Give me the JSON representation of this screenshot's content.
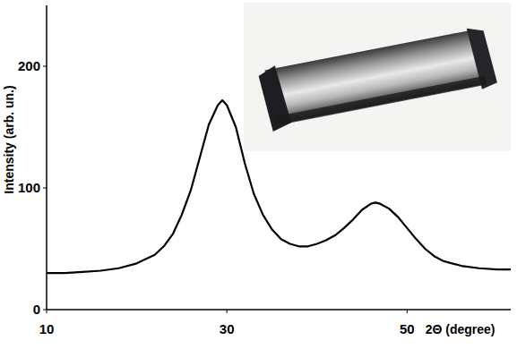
{
  "chart_data": {
    "type": "line",
    "x_label": "2Θ (degree)",
    "y_label": "Intensity (arb. un.)",
    "x": [
      10,
      12,
      14,
      16,
      18,
      20,
      22,
      23,
      24,
      25,
      26,
      27,
      28,
      29,
      29.5,
      30,
      31,
      32,
      33,
      34,
      35,
      36,
      37,
      38,
      39,
      40,
      41,
      42,
      43,
      44,
      45,
      46,
      46.5,
      47,
      48,
      49,
      50,
      51,
      52,
      53,
      54,
      56,
      58,
      60,
      61.5
    ],
    "values": [
      30,
      30,
      31,
      32,
      34,
      38,
      45,
      52,
      62,
      78,
      98,
      125,
      152,
      168,
      172,
      168,
      150,
      120,
      95,
      78,
      66,
      58,
      54,
      52,
      52,
      54,
      57,
      61,
      67,
      74,
      82,
      87,
      88,
      87,
      83,
      76,
      67,
      58,
      50,
      44,
      40,
      36,
      34,
      33,
      33
    ],
    "color": "#000000",
    "xlim": [
      10,
      61.5
    ],
    "xticks": [
      10,
      30,
      50
    ],
    "ylim": [
      0,
      250
    ],
    "yticks": [
      0,
      100,
      200
    ],
    "grid": false
  }
}
